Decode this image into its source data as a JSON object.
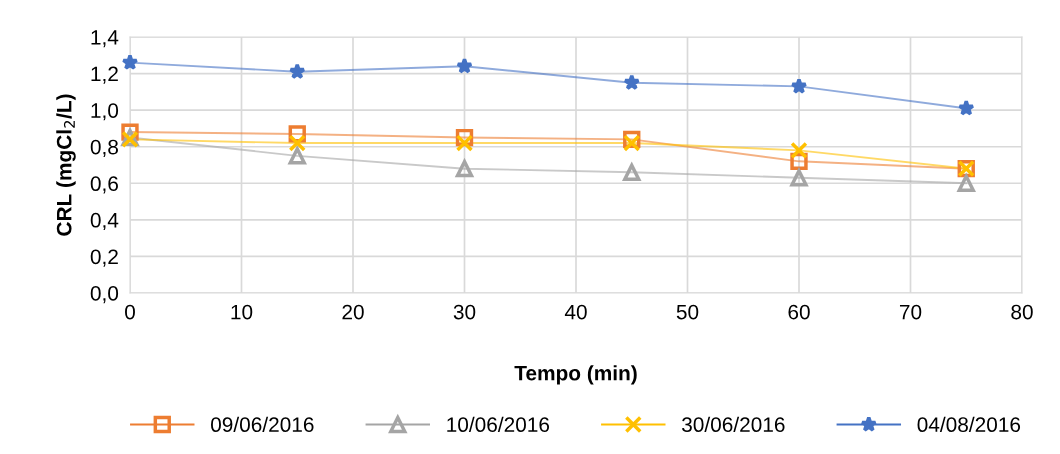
{
  "chart_data": {
    "type": "line",
    "xlabel": "Tempo (min)",
    "ylabel": "CRL (mgCl$_{2}$/L)",
    "x": [
      0,
      15,
      30,
      45,
      60,
      75
    ],
    "series": [
      {
        "name": "09/06/2016",
        "color": "#ed7d31",
        "marker": "square",
        "values": [
          0.88,
          0.87,
          0.85,
          0.84,
          0.72,
          0.68
        ]
      },
      {
        "name": "10/06/2016",
        "color": "#a5a5a5",
        "marker": "triangle",
        "values": [
          0.85,
          0.75,
          0.68,
          0.66,
          0.63,
          0.6
        ]
      },
      {
        "name": "30/06/2016",
        "color": "#ffc000",
        "marker": "cross",
        "values": [
          0.84,
          0.82,
          0.82,
          0.82,
          0.78,
          0.68
        ]
      },
      {
        "name": "04/08/2016",
        "color": "#4472c4",
        "marker": "star",
        "values": [
          1.26,
          1.21,
          1.24,
          1.15,
          1.13,
          1.01
        ]
      }
    ],
    "xlim": [
      0,
      80
    ],
    "xticks": [
      0,
      10,
      20,
      30,
      40,
      50,
      60,
      70,
      80
    ],
    "ylim": [
      0,
      1.4
    ],
    "yticks": [
      {
        "value": 0,
        "label": "0,0"
      },
      {
        "value": 0.2,
        "label": "0,2"
      },
      {
        "value": 0.4,
        "label": "0,4"
      },
      {
        "value": 0.6,
        "label": "0,6"
      },
      {
        "value": 0.8,
        "label": "0,8"
      },
      {
        "value": 1.0,
        "label": "1,0"
      },
      {
        "value": 1.2,
        "label": "1,2"
      },
      {
        "value": 1.4,
        "label": "1,4"
      }
    ],
    "grid": true,
    "legend": "bottom",
    "line_style": "solid"
  }
}
